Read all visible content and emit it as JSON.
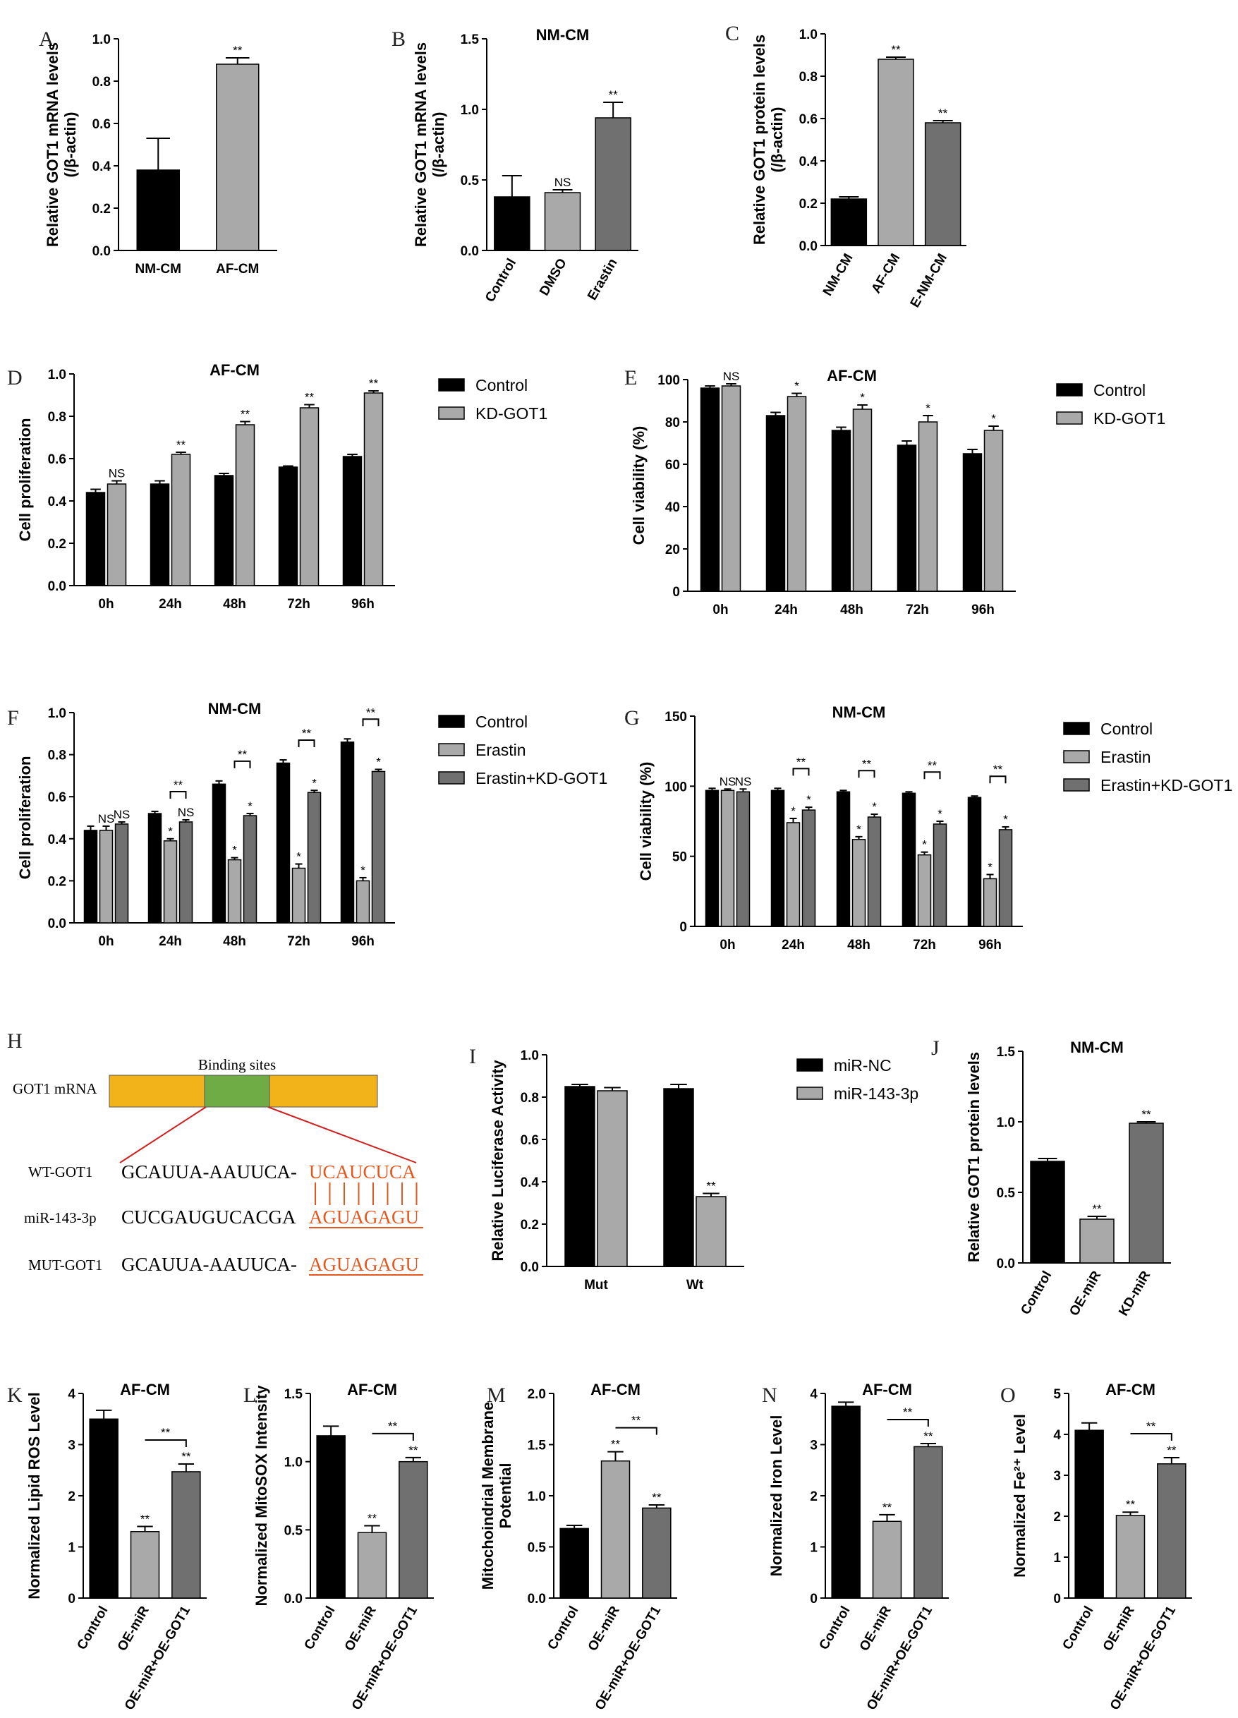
{
  "colors": {
    "black": "#000000",
    "light": "#a9a9a9",
    "dark": "#707070",
    "gene": "#f2b31a",
    "site": "#6fac46",
    "pair": "#e4571e"
  },
  "chart_data": [
    {
      "id": "A",
      "panel_label": "A",
      "type": "bar",
      "title": "",
      "ylabel": "Relative GOT1 mRNA levels (/β-actin)",
      "ylabel_lines": [
        "Relative GOT1 mRNA levels",
        "(/β-actin)"
      ],
      "ylim": [
        0,
        1.0
      ],
      "yticks": [
        "0.0",
        "0.2",
        "0.4",
        "0.6",
        "0.8",
        "1.0"
      ],
      "categories": [
        "NM-CM",
        "AF-CM"
      ],
      "values": [
        0.38,
        0.88
      ],
      "errors": [
        0.15,
        0.03
      ],
      "colors": [
        "#000000",
        "#a9a9a9"
      ],
      "significance": [
        "",
        "**"
      ]
    },
    {
      "id": "B",
      "panel_label": "B",
      "type": "bar",
      "title": "NM-CM",
      "ylabel": "Relative GOT1 mRNA levels (/β-actin)",
      "ylabel_lines": [
        "Relative GOT1 mRNA levels",
        "(/β-actin)"
      ],
      "ylim": [
        0,
        1.5
      ],
      "yticks": [
        "0.0",
        "0.5",
        "1.0",
        "1.5"
      ],
      "categories": [
        "Control",
        "DMSO",
        "Erastin"
      ],
      "values": [
        0.38,
        0.41,
        0.94
      ],
      "errors": [
        0.15,
        0.02,
        0.11
      ],
      "colors": [
        "#000000",
        "#a9a9a9",
        "#707070"
      ],
      "significance": [
        "",
        "NS",
        "**"
      ]
    },
    {
      "id": "C",
      "panel_label": "C",
      "type": "bar",
      "title": "",
      "ylabel": "Relative GOT1 protein levels (/β-actin)",
      "ylabel_lines": [
        "Relative GOT1 protein levels",
        "(/β-actin)"
      ],
      "ylim": [
        0,
        1.0
      ],
      "yticks": [
        "0.0",
        "0.2",
        "0.4",
        "0.6",
        "0.8",
        "1.0"
      ],
      "categories": [
        "NM-CM",
        "AF-CM",
        "E-NM-CM"
      ],
      "values": [
        0.22,
        0.88,
        0.58
      ],
      "errors": [
        0.01,
        0.01,
        0.01
      ],
      "colors": [
        "#000000",
        "#a9a9a9",
        "#707070"
      ],
      "significance": [
        "",
        "**",
        "**"
      ]
    },
    {
      "id": "D",
      "panel_label": "D",
      "type": "bar",
      "title": "AF-CM",
      "ylabel": "Cell proliferation",
      "ylabel_lines": [
        "Cell proliferation"
      ],
      "ylim": [
        0,
        1.0
      ],
      "yticks": [
        "0.0",
        "0.2",
        "0.4",
        "0.6",
        "0.8",
        "1.0"
      ],
      "categories": [
        "0h",
        "24h",
        "48h",
        "72h",
        "96h"
      ],
      "series": [
        {
          "name": "Control",
          "values": [
            0.44,
            0.48,
            0.52,
            0.56,
            0.61
          ],
          "errors": [
            0.015,
            0.015,
            0.01,
            0.005,
            0.01
          ],
          "color": "#000000",
          "significance": [
            "",
            "",
            "",
            "",
            ""
          ]
        },
        {
          "name": "KD-GOT1",
          "values": [
            0.48,
            0.62,
            0.76,
            0.84,
            0.91
          ],
          "errors": [
            0.015,
            0.01,
            0.015,
            0.015,
            0.01
          ],
          "color": "#a9a9a9",
          "significance": [
            "NS",
            "**",
            "**",
            "**",
            "**"
          ]
        }
      ],
      "legend": [
        "Control",
        "KD-GOT1"
      ]
    },
    {
      "id": "E",
      "panel_label": "E",
      "type": "bar",
      "title": "AF-CM",
      "ylabel": "Cell viability (%)",
      "ylabel_lines": [
        "Cell viability (%)"
      ],
      "ylim": [
        0,
        100
      ],
      "yticks": [
        "0",
        "20",
        "40",
        "60",
        "80",
        "100"
      ],
      "categories": [
        "0h",
        "24h",
        "48h",
        "72h",
        "96h"
      ],
      "series": [
        {
          "name": "Control",
          "values": [
            96,
            83,
            76,
            69,
            65
          ],
          "errors": [
            1,
            1.5,
            1.5,
            2,
            2
          ],
          "color": "#000000",
          "significance": [
            "",
            "",
            "",
            "",
            ""
          ]
        },
        {
          "name": "KD-GOT1",
          "values": [
            97,
            92,
            86,
            80,
            76
          ],
          "errors": [
            1,
            1.5,
            2,
            3,
            2
          ],
          "color": "#a9a9a9",
          "significance": [
            "NS",
            "*",
            "*",
            "*",
            "*"
          ]
        }
      ],
      "legend": [
        "Control",
        "KD-GOT1"
      ]
    },
    {
      "id": "F",
      "panel_label": "F",
      "type": "bar",
      "title": "NM-CM",
      "ylabel": "Cell proliferation",
      "ylabel_lines": [
        "Cell proliferation"
      ],
      "ylim": [
        0,
        1.0
      ],
      "yticks": [
        "0.0",
        "0.2",
        "0.4",
        "0.6",
        "0.8",
        "1.0"
      ],
      "categories": [
        "0h",
        "24h",
        "48h",
        "72h",
        "96h"
      ],
      "series": [
        {
          "name": "Control",
          "values": [
            0.44,
            0.52,
            0.66,
            0.76,
            0.86
          ],
          "errors": [
            0.02,
            0.01,
            0.015,
            0.015,
            0.015
          ],
          "color": "#000000",
          "significance": [
            "",
            "",
            "",
            "",
            ""
          ]
        },
        {
          "name": "Erastin",
          "values": [
            0.44,
            0.39,
            0.3,
            0.26,
            0.2
          ],
          "errors": [
            0.02,
            0.01,
            0.01,
            0.02,
            0.015
          ],
          "color": "#a9a9a9",
          "significance": [
            "NS",
            "*",
            "*",
            "*",
            "*"
          ]
        },
        {
          "name": "Erastin+KD-GOT1",
          "values": [
            0.47,
            0.48,
            0.51,
            0.62,
            0.72
          ],
          "errors": [
            0.01,
            0.01,
            0.01,
            0.01,
            0.01
          ],
          "color": "#707070",
          "significance": [
            "NS",
            "NS",
            "*",
            "*",
            "*"
          ]
        }
      ],
      "brackets": [
        "",
        "**",
        "**",
        "**",
        "**"
      ],
      "legend": [
        "Control",
        "Erastin",
        "Erastin+KD-GOT1"
      ]
    },
    {
      "id": "G",
      "panel_label": "G",
      "type": "bar",
      "title": "NM-CM",
      "ylabel": "Cell viability (%)",
      "ylabel_lines": [
        "Cell viability (%)"
      ],
      "ylim": [
        0,
        150
      ],
      "yticks": [
        "0",
        "50",
        "100",
        "150"
      ],
      "categories": [
        "0h",
        "24h",
        "48h",
        "72h",
        "96h"
      ],
      "series": [
        {
          "name": "Control",
          "values": [
            97,
            97,
            96,
            95,
            92
          ],
          "errors": [
            1.5,
            1.5,
            1,
            1,
            1
          ],
          "color": "#000000",
          "significance": [
            "",
            "",
            "",
            "",
            ""
          ]
        },
        {
          "name": "Erastin",
          "values": [
            97,
            74,
            62,
            51,
            34
          ],
          "errors": [
            1,
            3,
            2,
            2,
            3
          ],
          "color": "#a9a9a9",
          "significance": [
            "NS",
            "*",
            "*",
            "*",
            "*"
          ]
        },
        {
          "name": "Erastin+KD-GOT1",
          "values": [
            96,
            83,
            78,
            73,
            69
          ],
          "errors": [
            2,
            2,
            2,
            2,
            2
          ],
          "color": "#707070",
          "significance": [
            "NS",
            "*",
            "*",
            "*",
            "*"
          ]
        }
      ],
      "brackets": [
        "",
        "**",
        "**",
        "**",
        "**"
      ],
      "legend": [
        "Control",
        "Erastin",
        "Erastin+KD-GOT1"
      ]
    },
    {
      "id": "I",
      "panel_label": "I",
      "type": "bar",
      "title": "",
      "ylabel": "Relative Luciferase Activity",
      "ylabel_lines": [
        "Relative Luciferase Activity"
      ],
      "ylim": [
        0,
        1.0
      ],
      "yticks": [
        "0.0",
        "0.2",
        "0.4",
        "0.6",
        "0.8",
        "1.0"
      ],
      "categories": [
        "Mut",
        "Wt"
      ],
      "series": [
        {
          "name": "miR-NC",
          "values": [
            0.85,
            0.84
          ],
          "errors": [
            0.01,
            0.02
          ],
          "color": "#000000",
          "significance": [
            "",
            ""
          ]
        },
        {
          "name": "miR-143-3p",
          "values": [
            0.83,
            0.33
          ],
          "errors": [
            0.015,
            0.015
          ],
          "color": "#a9a9a9",
          "significance": [
            "",
            "**"
          ]
        }
      ],
      "legend": [
        "miR-NC",
        "miR-143-3p"
      ]
    },
    {
      "id": "J",
      "panel_label": "J",
      "type": "bar",
      "title": "NM-CM",
      "ylabel": "Relative GOT1 protein levels",
      "ylabel_lines": [
        "Relative GOT1 protein levels"
      ],
      "ylim": [
        0,
        1.5
      ],
      "yticks": [
        "0.0",
        "0.5",
        "1.0",
        "1.5"
      ],
      "categories": [
        "Control",
        "OE-miR",
        "KD-miR"
      ],
      "values": [
        0.72,
        0.31,
        0.99
      ],
      "errors": [
        0.02,
        0.02,
        0.01
      ],
      "colors": [
        "#000000",
        "#a9a9a9",
        "#707070"
      ],
      "significance": [
        "",
        "**",
        "**"
      ]
    },
    {
      "id": "K",
      "panel_label": "K",
      "type": "bar",
      "title": "AF-CM",
      "ylabel": "Normalized Lipid ROS Level",
      "ylabel_lines": [
        "Normalized Lipid ROS Level"
      ],
      "ylim": [
        0,
        4
      ],
      "yticks": [
        "0",
        "1",
        "2",
        "3",
        "4"
      ],
      "categories": [
        "Control",
        "OE-miR",
        "OE-miR+OE-GOT1"
      ],
      "values": [
        3.5,
        1.3,
        2.47
      ],
      "errors": [
        0.17,
        0.1,
        0.15
      ],
      "colors": [
        "#000000",
        "#a9a9a9",
        "#707070"
      ],
      "significance": [
        "",
        "**",
        "**"
      ],
      "bracket": "**"
    },
    {
      "id": "L",
      "panel_label": "L",
      "type": "bar",
      "title": "AF-CM",
      "ylabel": "Normalized MitoSOX Intensity",
      "ylabel_lines": [
        "Normalized MitoSOX Intensity"
      ],
      "ylim": [
        0,
        1.5
      ],
      "yticks": [
        "0.0",
        "0.5",
        "1.0",
        "1.5"
      ],
      "categories": [
        "Control",
        "OE-miR",
        "OE-miR+OE-GOT1"
      ],
      "values": [
        1.19,
        0.48,
        1.0
      ],
      "errors": [
        0.07,
        0.05,
        0.03
      ],
      "colors": [
        "#000000",
        "#a9a9a9",
        "#707070"
      ],
      "significance": [
        "",
        "**",
        "**"
      ],
      "bracket": "**"
    },
    {
      "id": "M",
      "panel_label": "M",
      "type": "bar",
      "title": "AF-CM",
      "ylabel": "Mitochoindrial Membrane Potential",
      "ylabel_lines": [
        "Mitochoindrial Membrane",
        "Potential"
      ],
      "ylim": [
        0,
        2.0
      ],
      "yticks": [
        "0.0",
        "0.5",
        "1.0",
        "1.5",
        "2.0"
      ],
      "categories": [
        "Control",
        "OE-miR",
        "OE-miR+OE-GOT1"
      ],
      "values": [
        0.68,
        1.34,
        0.88
      ],
      "errors": [
        0.03,
        0.09,
        0.03
      ],
      "colors": [
        "#000000",
        "#a9a9a9",
        "#707070"
      ],
      "significance": [
        "",
        "**",
        "**"
      ],
      "bracket": "**"
    },
    {
      "id": "N",
      "panel_label": "N",
      "type": "bar",
      "title": "AF-CM",
      "ylabel": "Normalized Iron Level",
      "ylabel_lines": [
        "Normalized Iron Level"
      ],
      "ylim": [
        0,
        4
      ],
      "yticks": [
        "0",
        "1",
        "2",
        "3",
        "4"
      ],
      "categories": [
        "Control",
        "OE-miR",
        "OE-miR+OE-GOT1"
      ],
      "values": [
        3.75,
        1.5,
        2.96
      ],
      "errors": [
        0.08,
        0.13,
        0.06
      ],
      "colors": [
        "#000000",
        "#a9a9a9",
        "#707070"
      ],
      "significance": [
        "",
        "**",
        "**"
      ],
      "bracket": "**"
    },
    {
      "id": "O",
      "panel_label": "O",
      "type": "bar",
      "title": "AF-CM",
      "ylabel": "Normalized Fe2+ Level",
      "ylabel_lines": [
        "Normalized Fe²⁺ Level"
      ],
      "ylim": [
        0,
        5
      ],
      "yticks": [
        "0",
        "1",
        "2",
        "3",
        "4",
        "5"
      ],
      "categories": [
        "Control",
        "OE-miR",
        "OE-miR+OE-GOT1"
      ],
      "values": [
        4.1,
        2.02,
        3.28
      ],
      "errors": [
        0.18,
        0.08,
        0.15
      ],
      "colors": [
        "#000000",
        "#a9a9a9",
        "#707070"
      ],
      "significance": [
        "",
        "**",
        "**"
      ],
      "bracket": "**"
    }
  ],
  "diagram_h": {
    "panel_label": "H",
    "gene_label": "GOT1 mRNA",
    "site_label": "Binding sites",
    "rows": [
      {
        "label": "WT-GOT1",
        "prefix": "GCAUUA-AAUUCA-",
        "highlight": "UCAUCUCA"
      },
      {
        "label": "miR-143-3p",
        "prefix": "CUCGAUGUCACGA",
        "highlight": "AGUAGAGU"
      },
      {
        "label": "MUT-GOT1",
        "prefix": "GCAUUA-AAUUCA-",
        "highlight": "AGUAGAGU"
      }
    ]
  }
}
